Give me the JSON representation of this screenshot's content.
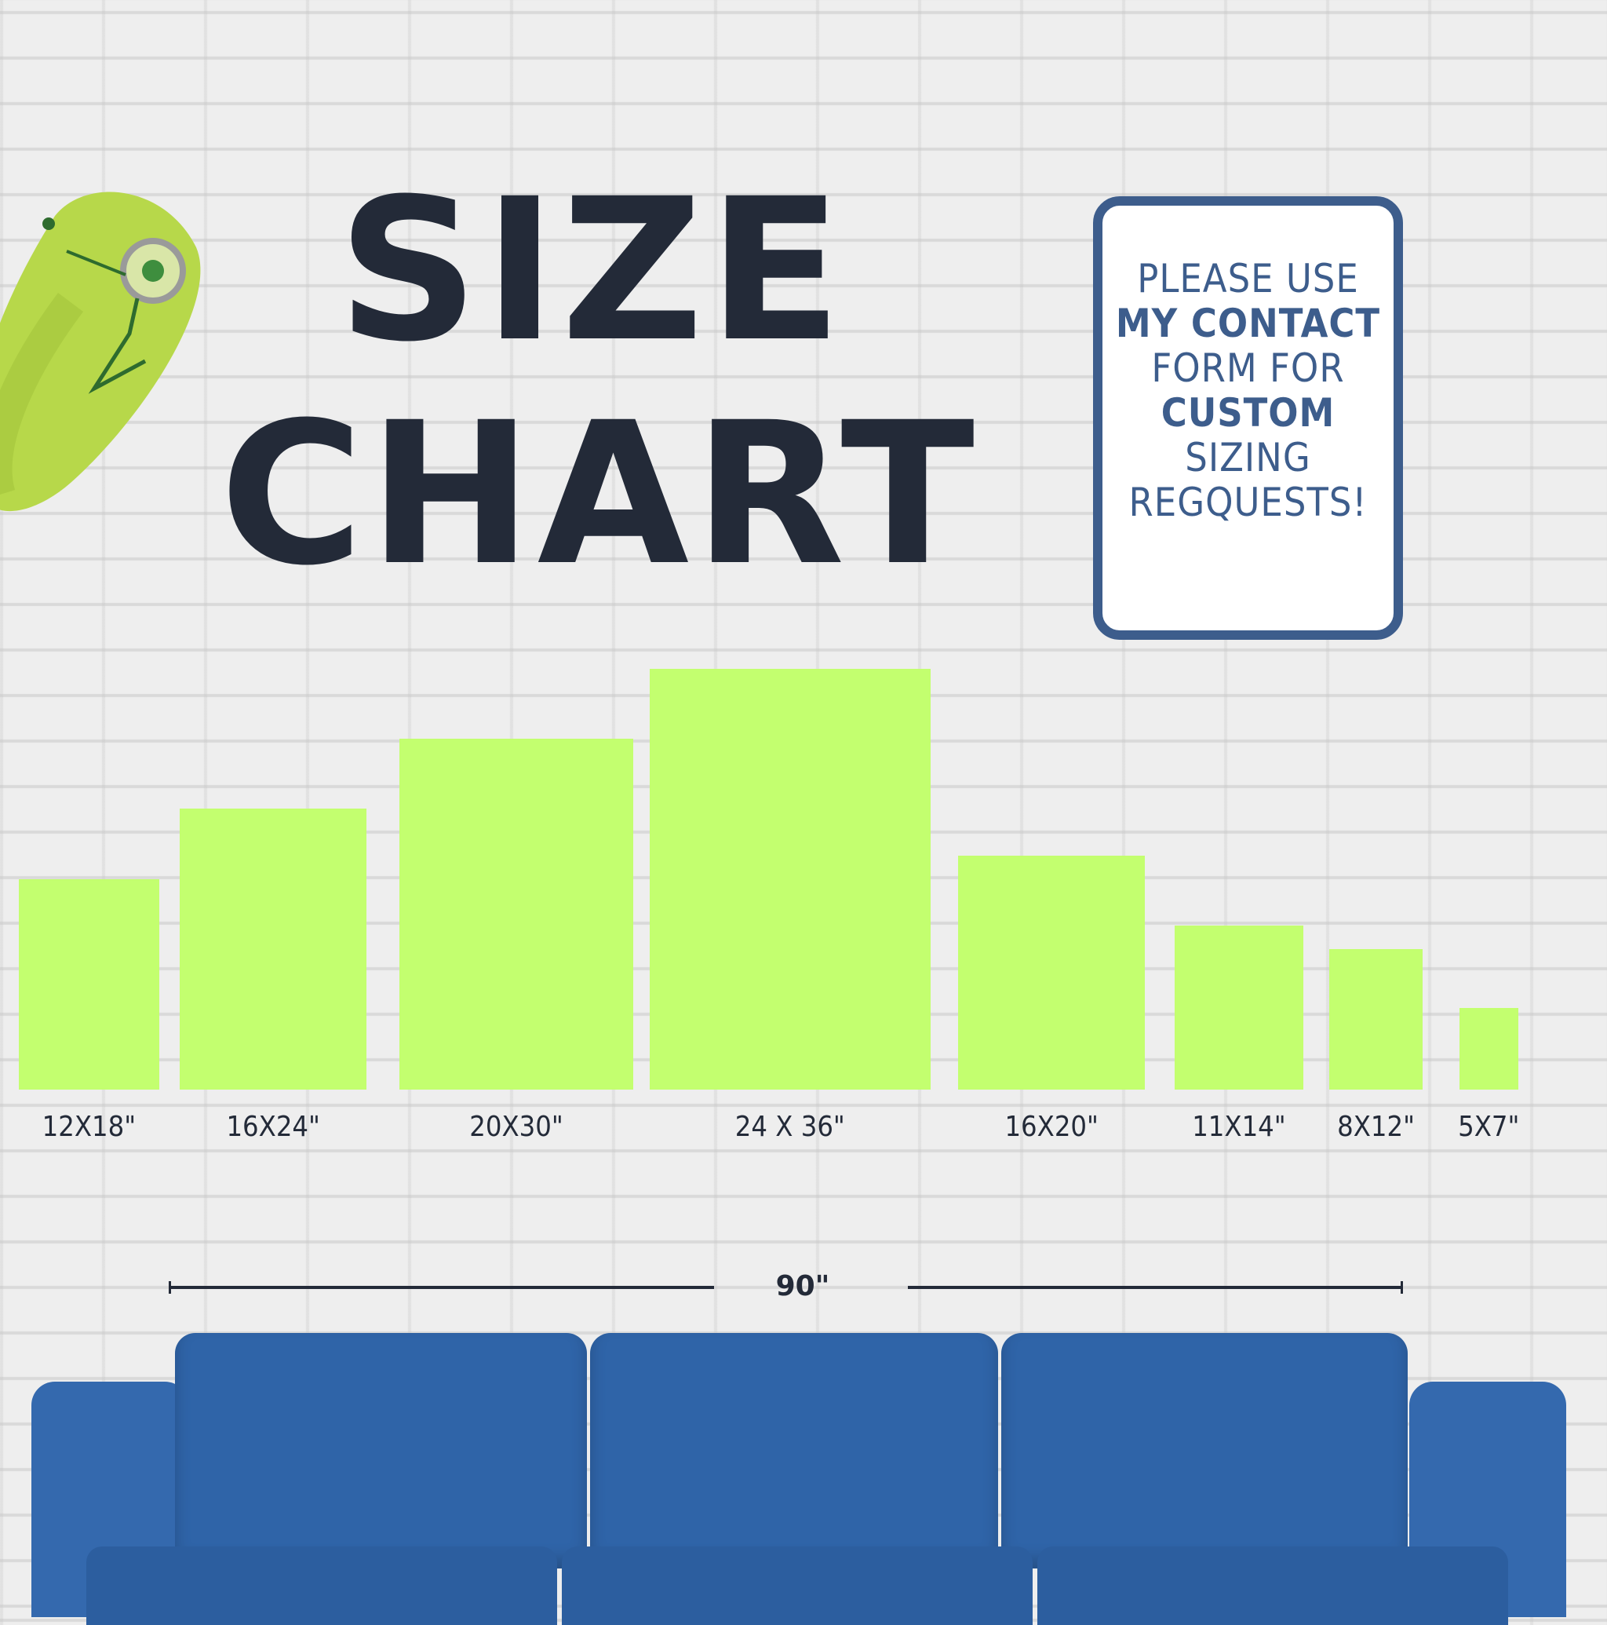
{
  "title": {
    "line1": "SIZE",
    "line2": "CHART"
  },
  "note": {
    "lines": [
      "PLEASE USE",
      "MY CONTACT",
      "FORM FOR",
      "CUSTOM",
      "SIZING",
      "REGQUESTS!"
    ]
  },
  "colors": {
    "bar": "#c3ff6f",
    "title": "#232a38",
    "note": "#3d5d8c",
    "sofa": "#2f64a8"
  },
  "icons": {
    "mascot": "pickle-with-monocle",
    "furniture": "blue-sofa"
  },
  "chart_data": {
    "type": "bar",
    "categories": [
      "12X18\"",
      "16X24\"",
      "20X30\"",
      "24 X 36\"",
      "16X20\"",
      "11X14\"",
      "8X12\"",
      "5X7\""
    ],
    "widths_in": [
      12,
      16,
      20,
      24,
      16,
      11,
      8,
      5
    ],
    "values": [
      18,
      24,
      30,
      36,
      20,
      14,
      12,
      7
    ],
    "unit": "inches",
    "grid": false,
    "reference": {
      "label": "90\"",
      "value": 90
    }
  }
}
